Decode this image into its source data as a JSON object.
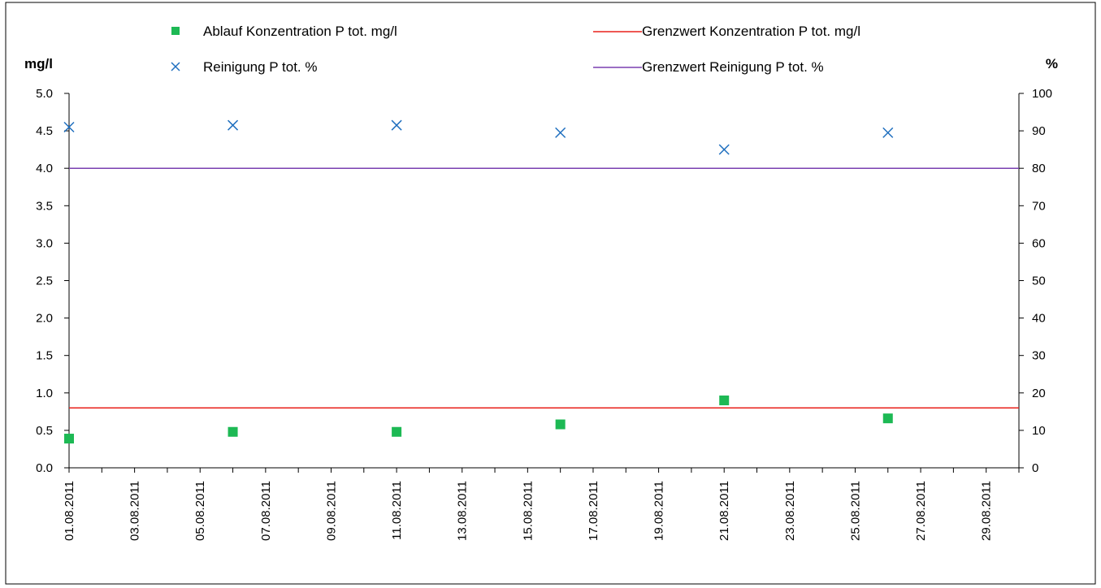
{
  "chart_data": {
    "type": "scatter",
    "title": "",
    "x_tick_labels": [
      "01.08.2011",
      "03.08.2011",
      "05.08.2011",
      "07.08.2011",
      "09.08.2011",
      "11.08.2011",
      "13.08.2011",
      "15.08.2011",
      "17.08.2011",
      "19.08.2011",
      "21.08.2011",
      "23.08.2011",
      "25.08.2011",
      "27.08.2011",
      "29.08.2011"
    ],
    "x_range": [
      "01.08.2011",
      "30.08.2011"
    ],
    "y_left": {
      "label": "mg/l",
      "ylim": [
        0,
        5
      ],
      "tick_labels": [
        "0.0",
        "0.5",
        "1.0",
        "1.5",
        "2.0",
        "2.5",
        "3.0",
        "3.5",
        "4.0",
        "4.5",
        "5.0"
      ]
    },
    "y_right": {
      "label": "%",
      "ylim": [
        0,
        100
      ],
      "tick_labels": [
        "0",
        "10",
        "20",
        "30",
        "40",
        "50",
        "60",
        "70",
        "80",
        "90",
        "100"
      ]
    },
    "grid": false,
    "legend_position": "top",
    "series": [
      {
        "name": "Ablauf Konzentration P tot. mg/l",
        "kind": "marker-square",
        "axis": "left",
        "color": "#1db954",
        "points": [
          {
            "date": "01.08.2011",
            "value": 0.39
          },
          {
            "date": "06.08.2011",
            "value": 0.48
          },
          {
            "date": "11.08.2011",
            "value": 0.48
          },
          {
            "date": "16.08.2011",
            "value": 0.58
          },
          {
            "date": "21.08.2011",
            "value": 0.9
          },
          {
            "date": "26.08.2011",
            "value": 0.66
          }
        ]
      },
      {
        "name": "Reinigung P tot. %",
        "kind": "marker-x",
        "axis": "right",
        "color": "#1f6fbf",
        "points": [
          {
            "date": "01.08.2011",
            "value": 91
          },
          {
            "date": "06.08.2011",
            "value": 91.5
          },
          {
            "date": "11.08.2011",
            "value": 91.5
          },
          {
            "date": "16.08.2011",
            "value": 89.5
          },
          {
            "date": "21.08.2011",
            "value": 85
          },
          {
            "date": "26.08.2011",
            "value": 89.5
          }
        ]
      },
      {
        "name": "Grenzwert Konzentration P tot. mg/l",
        "kind": "hline",
        "axis": "left",
        "color": "#e8201a",
        "value": 0.8
      },
      {
        "name": "Grenzwert Reinigung P tot. %",
        "kind": "hline",
        "axis": "right",
        "color": "#7a3fb0",
        "value": 80
      }
    ]
  }
}
